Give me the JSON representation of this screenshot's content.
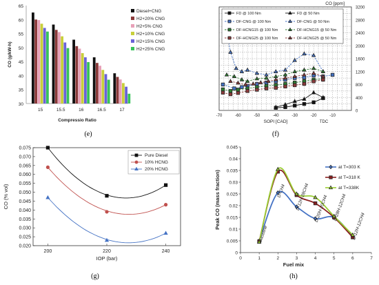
{
  "chart_data": [
    {
      "panel": "(e)",
      "type": "bar",
      "ylabel": "CO (g/kW-h)",
      "xlabel": "Compressio Ratio",
      "ylim": [
        30,
        65
      ],
      "yticks": [
        30,
        35,
        40,
        45,
        50,
        55,
        60,
        65
      ],
      "categories": [
        "15",
        "15.5",
        "16",
        "16.5",
        "17"
      ],
      "legend_position": "right",
      "series": [
        {
          "name": "Diesel+CNG",
          "color": "#111111",
          "values": [
            62.5,
            58.2,
            52.8,
            46.5,
            40.8
          ]
        },
        {
          "name": "H2+20% CNG",
          "color": "#8b3a3a",
          "values": [
            60.0,
            56.3,
            50.5,
            44.5,
            39.5
          ]
        },
        {
          "name": "H2+5% CNG",
          "color": "#e8a0b8",
          "values": [
            59.8,
            55.5,
            49.6,
            43.5,
            38.6
          ]
        },
        {
          "name": "H2+10% CNG",
          "color": "#c8cf3a",
          "values": [
            58.5,
            54.0,
            48.0,
            42.0,
            37.3
          ]
        },
        {
          "name": "H2+15% CNG",
          "color": "#6a62d8",
          "values": [
            57.0,
            51.8,
            46.5,
            40.5,
            36.0
          ]
        },
        {
          "name": "H2+25% CNG",
          "color": "#38c25a",
          "values": [
            55.7,
            49.8,
            44.8,
            38.5,
            33.5
          ]
        }
      ]
    },
    {
      "panel": "(f)",
      "type": "scatter",
      "ylabel": "CO [ppm]",
      "xlabel": "SOPI [CAD]",
      "x_end_label": "TDC",
      "xlim": [
        -70,
        0
      ],
      "ylim": [
        0,
        3200
      ],
      "xticks": [
        -70,
        -60,
        -50,
        -40,
        -30,
        -20,
        -10
      ],
      "yticks": [
        0,
        400,
        800,
        1200,
        1600,
        2000,
        2400,
        2800,
        3200
      ],
      "legend_position": "top",
      "series": [
        {
          "name": "FD @ 100 Nm",
          "color": "#111111",
          "marker": "square",
          "dashed": false,
          "x": [
            -40,
            -35,
            -30,
            -25,
            -20,
            -15
          ],
          "y": [
            80,
            100,
            150,
            200,
            250,
            380
          ]
        },
        {
          "name": "FD @ 50 Nm",
          "color": "#111111",
          "marker": "triangle",
          "dashed": false,
          "x": [
            -40,
            -35,
            -30,
            -25,
            -20,
            -15
          ],
          "y": [
            100,
            180,
            280,
            350,
            550,
            400
          ]
        },
        {
          "name": "DF-CNG @ 100 Nm",
          "color": "#4472c4",
          "marker": "square",
          "dashed": true,
          "x": [
            -68,
            -62,
            -58,
            -55,
            -50,
            -45,
            -40,
            -35,
            -30,
            -25,
            -20,
            -15,
            -10
          ],
          "y": [
            800,
            680,
            720,
            760,
            820,
            860,
            900,
            950,
            1000,
            1020,
            1080,
            1050,
            1100
          ]
        },
        {
          "name": "DF-CNG @ 50 Nm",
          "color": "#4472c4",
          "marker": "triangle",
          "dashed": true,
          "x": [
            -67,
            -64,
            -61,
            -58,
            -55,
            -50,
            -45,
            -40,
            -35,
            -30,
            -25,
            -20,
            -15
          ],
          "y": [
            2850,
            1800,
            1300,
            1200,
            1250,
            1150,
            1100,
            1200,
            1250,
            1550,
            1750,
            1700,
            1200
          ]
        },
        {
          "name": "DF-HCNG15 @ 100 Nm",
          "color": "#2e7d32",
          "marker": "square",
          "dashed": true,
          "x": [
            -68,
            -64,
            -60,
            -55,
            -50,
            -45,
            -40,
            -35,
            -30,
            -25,
            -20,
            -15
          ],
          "y": [
            650,
            600,
            640,
            680,
            720,
            760,
            780,
            820,
            860,
            900,
            950,
            980
          ]
        },
        {
          "name": "DF-HCNG15 @ 50 Nm",
          "color": "#2e7d32",
          "marker": "triangle",
          "dashed": true,
          "x": [
            -66,
            -62,
            -58,
            -55,
            -50,
            -45,
            -40,
            -35,
            -30,
            -25,
            -20,
            -15
          ],
          "y": [
            1100,
            1050,
            950,
            900,
            980,
            1000,
            1050,
            1100,
            1200,
            1250,
            1300,
            1200
          ]
        },
        {
          "name": "DF-HCNG25 @ 100 Nm",
          "color": "#8b3a3a",
          "marker": "square",
          "dashed": true,
          "x": [
            -68,
            -64,
            -60,
            -55,
            -50,
            -45,
            -40,
            -35,
            -30,
            -25,
            -20,
            -15
          ],
          "y": [
            550,
            500,
            540,
            600,
            640,
            680,
            700,
            740,
            780,
            820,
            900,
            950
          ]
        },
        {
          "name": "DF-HCNG25 @ 50 Nm",
          "color": "#8b3a3a",
          "marker": "triangle",
          "dashed": true,
          "x": [
            -64,
            -60,
            -56,
            -52,
            -48,
            -44,
            -40,
            -35,
            -30,
            -25,
            -20,
            -15
          ],
          "y": [
            900,
            850,
            800,
            820,
            860,
            900,
            950,
            1000,
            1050,
            1100,
            1150,
            1050
          ]
        }
      ]
    },
    {
      "panel": "(g)",
      "type": "line",
      "ylabel": "CO (% vol)",
      "xlabel": "IOP (bar)",
      "xlim": [
        195,
        245
      ],
      "ylim": [
        0.02,
        0.075
      ],
      "xticks": [
        200,
        220,
        240
      ],
      "yticks": [
        "0.020",
        "0.025",
        "0.030",
        "0.035",
        "0.040",
        "0.045",
        "0.050",
        "0.055",
        "0.060",
        "0.065",
        "0.070",
        "0.075"
      ],
      "legend_position": "top-right",
      "series": [
        {
          "name": "Pure Diesel",
          "color": "#111111",
          "marker": "square",
          "x": [
            200,
            220,
            240
          ],
          "y": [
            0.075,
            0.048,
            0.054
          ],
          "curve_min": 0.047
        },
        {
          "name": "10% HCNG",
          "color": "#c0504d",
          "marker": "circle",
          "x": [
            200,
            220,
            240
          ],
          "y": [
            0.064,
            0.039,
            0.043
          ],
          "curve_min": 0.038
        },
        {
          "name": "20% HCNG",
          "color": "#4472c4",
          "marker": "triangle",
          "x": [
            200,
            220,
            240
          ],
          "y": [
            0.047,
            0.023,
            0.027
          ],
          "curve_min": 0.022
        }
      ]
    },
    {
      "panel": "(h)",
      "type": "line",
      "ylabel": "Peak CO (mass fraction)",
      "xlabel": "Fuel mix",
      "xlim": [
        0,
        7
      ],
      "ylim": [
        0,
        0.045
      ],
      "xticks": [
        0,
        1,
        2,
        3,
        4,
        5,
        6,
        7
      ],
      "yticks": [
        "0",
        "0.005",
        "0.01",
        "0.015",
        "0.02",
        "0.025",
        "0.03",
        "0.035",
        "0.04",
        "0.045"
      ],
      "legend_position": "top-right",
      "point_labels": [
        "Baseline",
        "D-CH4",
        "D-12H-28CH4",
        "D-20H-20CH4",
        "D-28H-12CH4",
        "D-12H-12CH4"
      ],
      "series": [
        {
          "name": "at T=303 K",
          "color": "#4472c4",
          "marker": "diamond",
          "x": [
            1,
            2,
            3,
            4,
            5,
            6
          ],
          "y": [
            0.005,
            0.0255,
            0.0195,
            0.0145,
            0.015,
            0.007
          ]
        },
        {
          "name": "at T=318 K",
          "color": "#8b2020",
          "marker": "square",
          "x": [
            1,
            2,
            3,
            4,
            5,
            6
          ],
          "y": [
            0.0048,
            0.0345,
            0.0245,
            0.021,
            0.015,
            0.0065
          ]
        },
        {
          "name": "at T=338K",
          "color": "#9acd32",
          "marker": "triangle",
          "x": [
            1,
            2,
            3,
            4,
            5,
            6
          ],
          "y": [
            0.0045,
            0.0355,
            0.025,
            0.0235,
            0.0155,
            0.0075
          ]
        }
      ]
    }
  ]
}
